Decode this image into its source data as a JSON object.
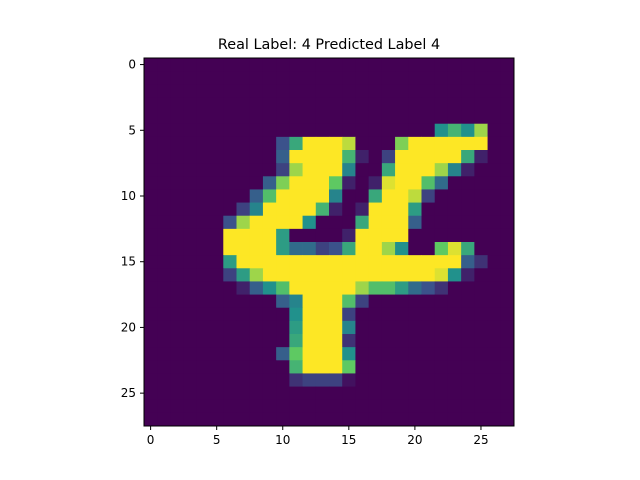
{
  "chart_data": {
    "type": "heatmap",
    "title": "Real Label: 4  Predicted Label 4",
    "xlabel": "",
    "ylabel": "",
    "grid": false,
    "colormap": "viridis",
    "value_range": [
      0,
      1
    ],
    "rows": 28,
    "cols": 28,
    "xlim": [
      -0.5,
      27.5
    ],
    "ylim": [
      27.5,
      -0.5
    ],
    "xticks": [
      0,
      5,
      10,
      15,
      20,
      25
    ],
    "yticks": [
      0,
      5,
      10,
      15,
      20,
      25
    ],
    "xtick_labels": [
      "0",
      "5",
      "10",
      "15",
      "20",
      "25"
    ],
    "ytick_labels": [
      "0",
      "5",
      "10",
      "15",
      "20",
      "25"
    ],
    "pixels": [
      [
        0,
        0,
        0,
        0,
        0,
        0,
        0,
        0,
        0,
        0,
        0,
        0,
        0,
        0,
        0,
        0,
        0,
        0,
        0,
        0,
        0,
        0,
        0,
        0,
        0,
        0,
        0,
        0
      ],
      [
        0,
        0,
        0,
        0,
        0,
        0,
        0,
        0,
        0,
        0,
        0,
        0,
        0,
        0,
        0,
        0,
        0,
        0,
        0,
        0,
        0,
        0,
        0,
        0,
        0,
        0,
        0,
        0
      ],
      [
        0,
        0,
        0,
        0,
        0,
        0,
        0,
        0,
        0,
        0,
        0,
        0,
        0,
        0,
        0,
        0,
        0,
        0,
        0,
        0,
        0,
        0,
        0,
        0,
        0,
        0,
        0,
        0
      ],
      [
        0,
        0,
        0,
        0,
        0,
        0,
        0,
        0,
        0,
        0,
        0,
        0,
        0,
        0,
        0,
        0,
        0,
        0,
        0,
        0,
        0,
        0,
        0,
        0,
        0,
        0,
        0,
        0
      ],
      [
        0,
        0,
        0,
        0,
        0,
        0,
        0,
        0,
        0,
        0,
        0,
        0,
        0,
        0,
        0,
        0,
        0,
        0,
        0,
        0,
        0,
        0,
        0,
        0,
        0,
        0,
        0,
        0
      ],
      [
        0,
        0,
        0,
        0,
        0,
        0,
        0,
        0,
        0,
        0,
        0,
        0,
        0,
        0,
        0,
        0,
        0,
        0,
        0,
        0,
        0,
        0,
        0.5,
        0.65,
        0.5,
        0.85,
        0,
        0
      ],
      [
        0,
        0,
        0,
        0,
        0,
        0,
        0,
        0,
        0,
        0,
        0.25,
        0.6,
        1,
        1,
        1,
        0.9,
        0,
        0,
        0,
        0.8,
        1,
        1,
        1,
        1,
        1,
        1,
        0,
        0
      ],
      [
        0,
        0,
        0,
        0,
        0,
        0,
        0,
        0,
        0,
        0,
        0.3,
        1,
        1,
        1,
        1,
        0.65,
        0.1,
        0,
        0.2,
        1,
        1,
        1,
        1,
        1,
        0.6,
        0.1,
        0,
        0
      ],
      [
        0,
        0,
        0,
        0,
        0,
        0,
        0,
        0,
        0,
        0,
        0.2,
        0.85,
        1,
        1,
        1,
        0.45,
        0,
        0,
        0.6,
        1,
        1,
        1,
        0.85,
        0.45,
        0.1,
        0,
        0,
        0
      ],
      [
        0,
        0,
        0,
        0,
        0,
        0,
        0,
        0,
        0,
        0.3,
        0.8,
        1,
        1,
        1,
        0.75,
        0.1,
        0,
        0.1,
        0.95,
        1,
        1,
        0.7,
        0.35,
        0,
        0,
        0,
        0,
        0
      ],
      [
        0,
        0,
        0,
        0,
        0,
        0,
        0,
        0,
        0.3,
        0.7,
        1,
        1,
        1,
        1,
        0.45,
        0,
        0,
        0.6,
        1,
        1,
        0.9,
        0.2,
        0,
        0,
        0,
        0,
        0,
        0
      ],
      [
        0,
        0,
        0,
        0,
        0,
        0,
        0,
        0.2,
        0.45,
        1,
        1,
        1,
        1,
        0.65,
        0.1,
        0,
        0.1,
        1,
        1,
        1,
        0.55,
        0,
        0,
        0,
        0,
        0,
        0,
        0
      ],
      [
        0,
        0,
        0,
        0,
        0,
        0,
        0.25,
        0.85,
        1,
        1,
        1,
        1,
        0.5,
        0,
        0,
        0,
        0.6,
        1,
        1,
        1,
        0.3,
        0,
        0,
        0,
        0,
        0,
        0,
        0
      ],
      [
        0,
        0,
        0,
        0,
        0,
        0,
        1,
        1,
        1,
        1,
        0.55,
        0,
        0,
        0,
        0,
        0.1,
        1,
        1,
        1,
        1,
        0,
        0,
        0,
        0,
        0,
        0,
        0,
        0
      ],
      [
        0,
        0,
        0,
        0,
        0,
        0,
        1,
        1,
        1,
        1,
        0.55,
        0.35,
        0.35,
        0.2,
        0.25,
        0.6,
        1,
        1,
        0.85,
        0.5,
        0,
        0,
        0.75,
        0.95,
        0.6,
        0,
        0,
        0
      ],
      [
        0,
        0,
        0,
        0,
        0,
        0,
        0.55,
        1,
        1,
        1,
        1,
        1,
        1,
        1,
        1,
        1,
        1,
        1,
        1,
        1,
        1,
        1,
        1,
        1,
        0.3,
        0.15,
        0,
        0
      ],
      [
        0,
        0,
        0,
        0,
        0,
        0,
        0.2,
        0.55,
        0.85,
        1,
        1,
        1,
        1,
        1,
        1,
        1,
        1,
        1,
        1,
        1,
        1,
        1,
        0.95,
        0.5,
        0.1,
        0,
        0,
        0
      ],
      [
        0,
        0,
        0,
        0,
        0,
        0,
        0,
        0.1,
        0.3,
        0.5,
        0.7,
        1,
        1,
        1,
        1,
        1,
        0.85,
        0.7,
        0.7,
        0.55,
        0.35,
        0.25,
        0.15,
        0,
        0,
        0,
        0,
        0
      ],
      [
        0,
        0,
        0,
        0,
        0,
        0,
        0,
        0,
        0,
        0,
        0.3,
        0.45,
        1,
        1,
        1,
        0.7,
        0.2,
        0,
        0,
        0,
        0,
        0,
        0,
        0,
        0,
        0,
        0,
        0
      ],
      [
        0,
        0,
        0,
        0,
        0,
        0,
        0,
        0,
        0,
        0,
        0,
        0.5,
        1,
        1,
        1,
        0.2,
        0,
        0,
        0,
        0,
        0,
        0,
        0,
        0,
        0,
        0,
        0,
        0
      ],
      [
        0,
        0,
        0,
        0,
        0,
        0,
        0,
        0,
        0,
        0,
        0,
        0.55,
        1,
        1,
        1,
        0.45,
        0,
        0,
        0,
        0,
        0,
        0,
        0,
        0,
        0,
        0,
        0,
        0
      ],
      [
        0,
        0,
        0,
        0,
        0,
        0,
        0,
        0,
        0,
        0,
        0,
        0.6,
        1,
        1,
        1,
        0.15,
        0,
        0,
        0,
        0,
        0,
        0,
        0,
        0,
        0,
        0,
        0,
        0
      ],
      [
        0,
        0,
        0,
        0,
        0,
        0,
        0,
        0,
        0,
        0,
        0.3,
        0.75,
        1,
        1,
        1,
        0.5,
        0,
        0,
        0,
        0,
        0,
        0,
        0,
        0,
        0,
        0,
        0,
        0
      ],
      [
        0,
        0,
        0,
        0,
        0,
        0,
        0,
        0,
        0,
        0,
        0,
        0.65,
        1,
        1,
        1,
        0.75,
        0,
        0,
        0,
        0,
        0,
        0,
        0,
        0,
        0,
        0,
        0,
        0
      ],
      [
        0,
        0,
        0,
        0,
        0,
        0,
        0,
        0,
        0,
        0,
        0,
        0.15,
        0.2,
        0.2,
        0.2,
        0.05,
        0,
        0,
        0,
        0,
        0,
        0,
        0,
        0,
        0,
        0,
        0,
        0
      ],
      [
        0,
        0,
        0,
        0,
        0,
        0,
        0,
        0,
        0,
        0,
        0,
        0,
        0,
        0,
        0,
        0,
        0,
        0,
        0,
        0,
        0,
        0,
        0,
        0,
        0,
        0,
        0,
        0
      ],
      [
        0,
        0,
        0,
        0,
        0,
        0,
        0,
        0,
        0,
        0,
        0,
        0,
        0,
        0,
        0,
        0,
        0,
        0,
        0,
        0,
        0,
        0,
        0,
        0,
        0,
        0,
        0,
        0
      ],
      [
        0,
        0,
        0,
        0,
        0,
        0,
        0,
        0,
        0,
        0,
        0,
        0,
        0,
        0,
        0,
        0,
        0,
        0,
        0,
        0,
        0,
        0,
        0,
        0,
        0,
        0,
        0,
        0
      ]
    ]
  }
}
